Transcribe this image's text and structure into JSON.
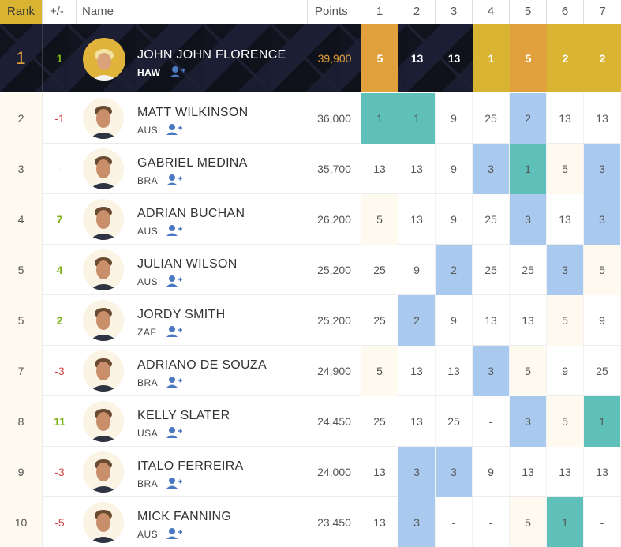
{
  "headers": {
    "rank": "Rank",
    "change": "+/-",
    "name": "Name",
    "points": "Points",
    "events": [
      "1",
      "2",
      "3",
      "4",
      "5",
      "6",
      "7"
    ]
  },
  "colors": {
    "gold": "#d9b433",
    "orange": "#e0a03c",
    "teal": "#5ec0b8",
    "blue": "#a9c9ee",
    "cream": "#fffaf0",
    "up": "#7cb518",
    "down": "#d64545"
  },
  "leader": {
    "rank": "1",
    "change": "1",
    "name": "JOHN JOHN FLORENCE",
    "country": "HAW",
    "points": "39,900",
    "events": [
      "5",
      "13",
      "13",
      "1",
      "5",
      "2",
      "2"
    ],
    "event_styles": [
      "orange",
      "dark",
      "dark",
      "gold",
      "orange",
      "gold",
      "gold"
    ]
  },
  "rows": [
    {
      "rank": "2",
      "change": "-1",
      "dir": "down",
      "name": "MATT WILKINSON",
      "country": "AUS",
      "points": "36,000",
      "events": [
        "1",
        "1",
        "9",
        "25",
        "2",
        "13",
        "13"
      ],
      "hl": [
        "teal",
        "teal",
        "",
        "",
        "blue",
        "",
        ""
      ]
    },
    {
      "rank": "3",
      "change": "-",
      "dir": "none",
      "name": "GABRIEL MEDINA",
      "country": "BRA",
      "points": "35,700",
      "events": [
        "13",
        "13",
        "9",
        "3",
        "1",
        "5",
        "3"
      ],
      "hl": [
        "",
        "",
        "",
        "blue",
        "teal",
        "cream",
        "blue"
      ]
    },
    {
      "rank": "4",
      "change": "7",
      "dir": "up",
      "name": "ADRIAN BUCHAN",
      "country": "AUS",
      "points": "26,200",
      "events": [
        "5",
        "13",
        "9",
        "25",
        "3",
        "13",
        "3"
      ],
      "hl": [
        "cream",
        "",
        "",
        "",
        "blue",
        "",
        "blue"
      ]
    },
    {
      "rank": "5",
      "change": "4",
      "dir": "up",
      "name": "JULIAN WILSON",
      "country": "AUS",
      "points": "25,200",
      "events": [
        "25",
        "9",
        "2",
        "25",
        "25",
        "3",
        "5"
      ],
      "hl": [
        "",
        "",
        "blue",
        "",
        "",
        "blue",
        "cream"
      ]
    },
    {
      "rank": "5",
      "change": "2",
      "dir": "up",
      "name": "JORDY SMITH",
      "country": "ZAF",
      "points": "25,200",
      "events": [
        "25",
        "2",
        "9",
        "13",
        "13",
        "5",
        "9"
      ],
      "hl": [
        "",
        "blue",
        "",
        "",
        "",
        "cream",
        ""
      ]
    },
    {
      "rank": "7",
      "change": "-3",
      "dir": "down",
      "name": "ADRIANO DE SOUZA",
      "country": "BRA",
      "points": "24,900",
      "events": [
        "5",
        "13",
        "13",
        "3",
        "5",
        "9",
        "25"
      ],
      "hl": [
        "cream",
        "",
        "",
        "blue",
        "cream",
        "",
        ""
      ]
    },
    {
      "rank": "8",
      "change": "11",
      "dir": "up",
      "name": "KELLY SLATER",
      "country": "USA",
      "points": "24,450",
      "events": [
        "25",
        "13",
        "25",
        "-",
        "3",
        "5",
        "1"
      ],
      "hl": [
        "",
        "",
        "",
        "",
        "blue",
        "cream",
        "teal"
      ]
    },
    {
      "rank": "9",
      "change": "-3",
      "dir": "down",
      "name": "ITALO FERREIRA",
      "country": "BRA",
      "points": "24,000",
      "events": [
        "13",
        "3",
        "3",
        "9",
        "13",
        "13",
        "13"
      ],
      "hl": [
        "",
        "blue",
        "blue",
        "",
        "",
        "",
        ""
      ]
    },
    {
      "rank": "10",
      "change": "-5",
      "dir": "down",
      "name": "MICK FANNING",
      "country": "AUS",
      "points": "23,450",
      "events": [
        "13",
        "3",
        "-",
        "-",
        "5",
        "1",
        "-"
      ],
      "hl": [
        "",
        "blue",
        "",
        "",
        "cream",
        "teal",
        ""
      ]
    }
  ]
}
